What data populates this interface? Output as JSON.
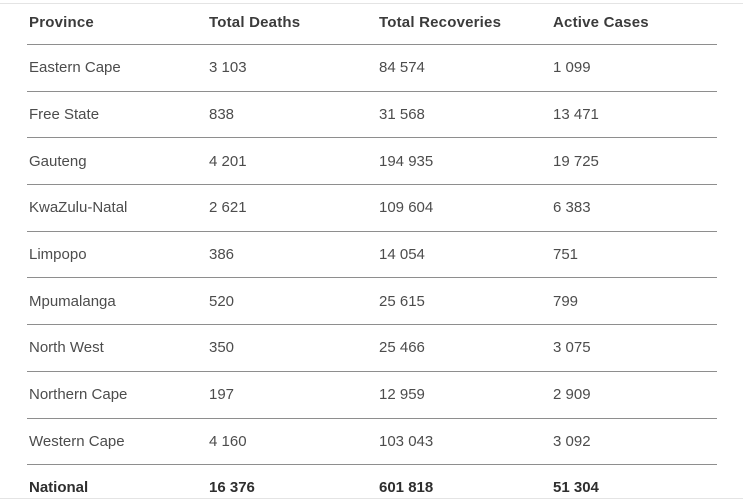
{
  "chart_data": {
    "type": "table",
    "columns": [
      "Province",
      "Total Deaths",
      "Total Recoveries",
      "Active Cases"
    ],
    "rows": [
      [
        "Eastern Cape",
        "3 103",
        "84 574",
        "1 099"
      ],
      [
        "Free State",
        "838",
        "31 568",
        "13 471"
      ],
      [
        "Gauteng",
        "4 201",
        "194 935",
        "19 725"
      ],
      [
        "KwaZulu-Natal",
        "2 621",
        "109 604",
        "6 383"
      ],
      [
        "Limpopo",
        "386",
        "14 054",
        "751"
      ],
      [
        "Mpumalanga",
        "520",
        "25 615",
        "799"
      ],
      [
        "North West",
        "350",
        "25 466",
        "3 075"
      ],
      [
        "Northern Cape",
        "197",
        "12 959",
        "2 909"
      ],
      [
        "Western Cape",
        "4 160",
        "103 043",
        "3 092"
      ]
    ],
    "total_row": [
      "National",
      "16 376",
      "601 818",
      "51 304"
    ]
  },
  "colors": {
    "background": "#ffffff",
    "header_text": "#3b3b3b",
    "body_text": "#4c4c4c",
    "total_text": "#2e2e2e",
    "separator": "#8e8e8e",
    "outer_border": "#e4e4e4"
  }
}
